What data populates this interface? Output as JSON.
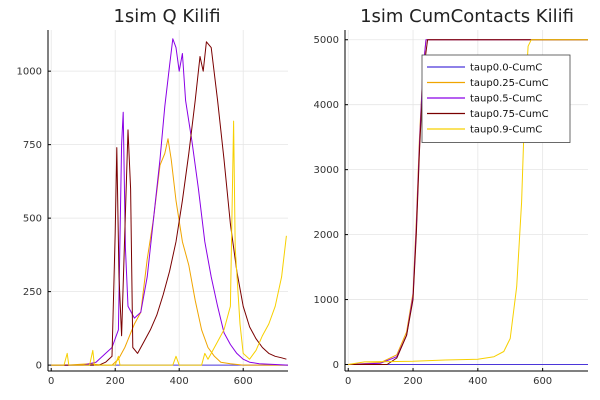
{
  "chart_data": [
    {
      "type": "line",
      "title": "1sim Q Kilifi",
      "xlabel": "",
      "ylabel": "",
      "xlim": [
        -10,
        740
      ],
      "ylim": [
        -20,
        1140
      ],
      "x_ticks": [
        0,
        200,
        400,
        600
      ],
      "y_ticks": [
        0,
        250,
        500,
        750,
        1000
      ],
      "grid": true,
      "legend": false,
      "series": [
        {
          "color": "#4b36d9",
          "points": [
            [
              0,
              0
            ],
            [
              740,
              0
            ]
          ]
        },
        {
          "color": "#f0a500",
          "points": [
            [
              0,
              0
            ],
            [
              50,
              0
            ],
            [
              120,
              5
            ],
            [
              160,
              0
            ],
            [
              190,
              0
            ],
            [
              210,
              20
            ],
            [
              230,
              60
            ],
            [
              260,
              140
            ],
            [
              280,
              180
            ],
            [
              300,
              360
            ],
            [
              320,
              500
            ],
            [
              340,
              680
            ],
            [
              355,
              720
            ],
            [
              365,
              770
            ],
            [
              375,
              700
            ],
            [
              390,
              560
            ],
            [
              410,
              420
            ],
            [
              430,
              340
            ],
            [
              450,
              220
            ],
            [
              470,
              120
            ],
            [
              490,
              60
            ],
            [
              510,
              30
            ],
            [
              530,
              10
            ],
            [
              560,
              5
            ],
            [
              600,
              0
            ],
            [
              740,
              0
            ]
          ]
        },
        {
          "color": "#8a00e6",
          "points": [
            [
              0,
              0
            ],
            [
              100,
              0
            ],
            [
              140,
              10
            ],
            [
              170,
              40
            ],
            [
              190,
              60
            ],
            [
              210,
              120
            ],
            [
              220,
              750
            ],
            [
              225,
              860
            ],
            [
              232,
              400
            ],
            [
              240,
              200
            ],
            [
              260,
              160
            ],
            [
              280,
              180
            ],
            [
              300,
              300
            ],
            [
              320,
              500
            ],
            [
              340,
              700
            ],
            [
              355,
              880
            ],
            [
              370,
              1020
            ],
            [
              380,
              1110
            ],
            [
              390,
              1080
            ],
            [
              400,
              1000
            ],
            [
              410,
              1060
            ],
            [
              420,
              900
            ],
            [
              440,
              760
            ],
            [
              460,
              600
            ],
            [
              480,
              420
            ],
            [
              500,
              300
            ],
            [
              520,
              200
            ],
            [
              540,
              110
            ],
            [
              560,
              70
            ],
            [
              580,
              40
            ],
            [
              600,
              20
            ],
            [
              620,
              10
            ],
            [
              650,
              5
            ],
            [
              700,
              2
            ],
            [
              740,
              0
            ]
          ]
        },
        {
          "color": "#7a0000",
          "points": [
            [
              0,
              0
            ],
            [
              150,
              0
            ],
            [
              170,
              10
            ],
            [
              190,
              30
            ],
            [
              200,
              450
            ],
            [
              205,
              740
            ],
            [
              212,
              300
            ],
            [
              220,
              100
            ],
            [
              240,
              800
            ],
            [
              248,
              600
            ],
            [
              255,
              60
            ],
            [
              270,
              40
            ],
            [
              290,
              80
            ],
            [
              310,
              120
            ],
            [
              330,
              170
            ],
            [
              350,
              240
            ],
            [
              370,
              320
            ],
            [
              390,
              420
            ],
            [
              410,
              560
            ],
            [
              430,
              720
            ],
            [
              450,
              900
            ],
            [
              465,
              1050
            ],
            [
              475,
              1000
            ],
            [
              485,
              1100
            ],
            [
              500,
              1080
            ],
            [
              520,
              900
            ],
            [
              540,
              700
            ],
            [
              560,
              480
            ],
            [
              580,
              320
            ],
            [
              600,
              200
            ],
            [
              620,
              130
            ],
            [
              640,
              90
            ],
            [
              660,
              60
            ],
            [
              680,
              40
            ],
            [
              700,
              30
            ],
            [
              720,
              25
            ],
            [
              735,
              20
            ]
          ]
        },
        {
          "color": "#f7d000",
          "points": [
            [
              0,
              0
            ],
            [
              40,
              0
            ],
            [
              50,
              40
            ],
            [
              55,
              0
            ],
            [
              120,
              0
            ],
            [
              130,
              50
            ],
            [
              135,
              0
            ],
            [
              200,
              0
            ],
            [
              210,
              30
            ],
            [
              215,
              0
            ],
            [
              380,
              0
            ],
            [
              390,
              30
            ],
            [
              400,
              0
            ],
            [
              470,
              0
            ],
            [
              480,
              40
            ],
            [
              490,
              20
            ],
            [
              520,
              80
            ],
            [
              540,
              120
            ],
            [
              560,
              200
            ],
            [
              570,
              830
            ],
            [
              575,
              400
            ],
            [
              590,
              140
            ],
            [
              600,
              40
            ],
            [
              620,
              20
            ],
            [
              640,
              50
            ],
            [
              660,
              100
            ],
            [
              680,
              140
            ],
            [
              700,
              200
            ],
            [
              720,
              300
            ],
            [
              735,
              440
            ]
          ]
        }
      ]
    },
    {
      "type": "line",
      "title": "1sim CumContacts Kilifi",
      "xlabel": "",
      "ylabel": "",
      "xlim": [
        -10,
        740
      ],
      "ylim": [
        -100,
        5150
      ],
      "x_ticks": [
        0,
        200,
        400,
        600
      ],
      "y_ticks": [
        0,
        1000,
        2000,
        3000,
        4000,
        5000
      ],
      "grid": true,
      "legend": true,
      "legend_position": "top-right",
      "series": [
        {
          "name": "taup0.0-CumC",
          "color": "#4b36d9",
          "points": [
            [
              0,
              0
            ],
            [
              740,
              0
            ]
          ]
        },
        {
          "name": "taup0.25-CumC",
          "color": "#f0a500",
          "points": [
            [
              0,
              0
            ],
            [
              100,
              30
            ],
            [
              150,
              150
            ],
            [
              180,
              500
            ],
            [
              200,
              1100
            ],
            [
              210,
              2200
            ],
            [
              220,
              3500
            ],
            [
              230,
              4500
            ],
            [
              240,
              5000
            ],
            [
              740,
              5000
            ]
          ]
        },
        {
          "name": "taup0.5-CumC",
          "color": "#8a00e6",
          "points": [
            [
              0,
              0
            ],
            [
              100,
              20
            ],
            [
              150,
              120
            ],
            [
              180,
              450
            ],
            [
              200,
              1050
            ],
            [
              210,
              2100
            ],
            [
              220,
              3400
            ],
            [
              230,
              4500
            ],
            [
              240,
              5000
            ],
            [
              740,
              5000
            ]
          ]
        },
        {
          "name": "taup0.75-CumC",
          "color": "#7a0000",
          "points": [
            [
              0,
              0
            ],
            [
              120,
              0
            ],
            [
              150,
              100
            ],
            [
              180,
              450
            ],
            [
              200,
              1000
            ],
            [
              210,
              2000
            ],
            [
              220,
              3300
            ],
            [
              232,
              4500
            ],
            [
              245,
              5000
            ],
            [
              740,
              5000
            ]
          ]
        },
        {
          "name": "taup0.9-CumC",
          "color": "#f7d000",
          "points": [
            [
              0,
              0
            ],
            [
              50,
              40
            ],
            [
              200,
              50
            ],
            [
              250,
              60
            ],
            [
              300,
              70
            ],
            [
              400,
              80
            ],
            [
              450,
              120
            ],
            [
              480,
              200
            ],
            [
              500,
              400
            ],
            [
              520,
              1200
            ],
            [
              535,
              2500
            ],
            [
              545,
              4000
            ],
            [
              555,
              4900
            ],
            [
              565,
              5000
            ],
            [
              740,
              5000
            ]
          ]
        }
      ]
    }
  ]
}
